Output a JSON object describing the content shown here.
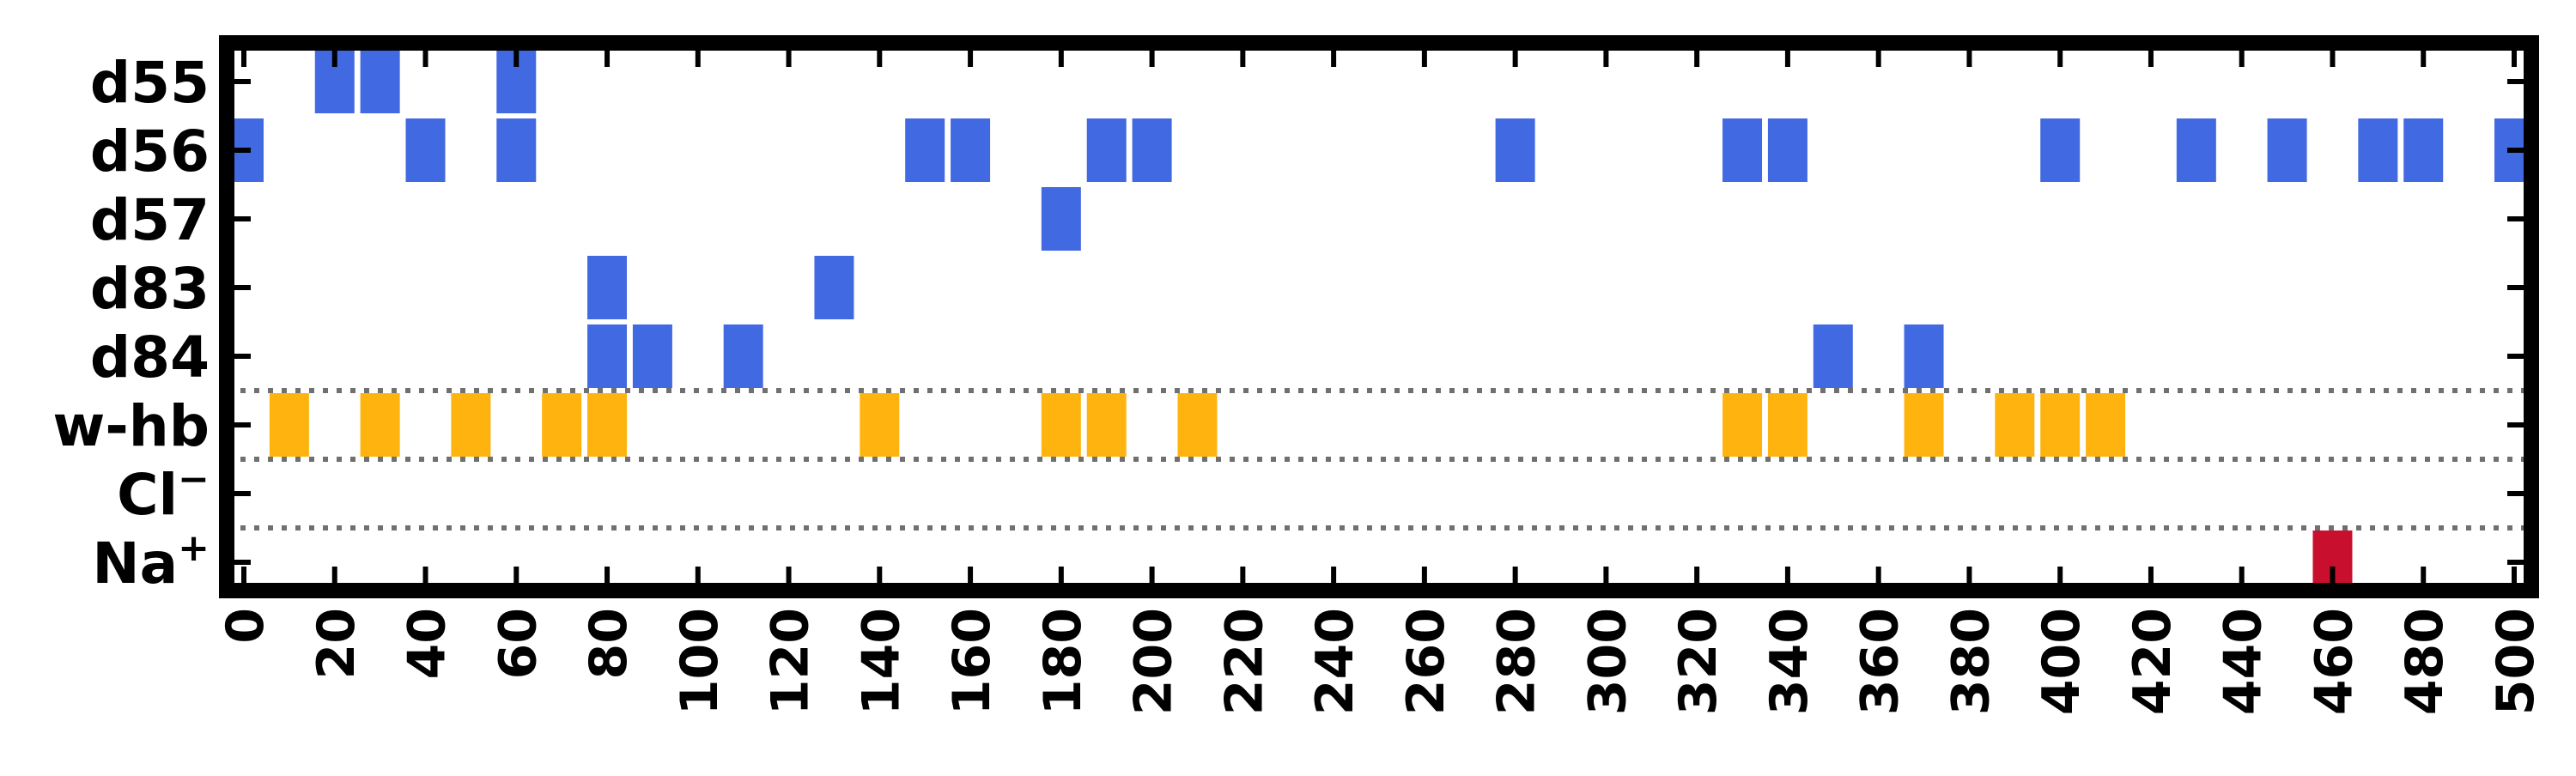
{
  "chart_data": {
    "type": "scatter",
    "title": "",
    "xlabel": "",
    "ylabel": "",
    "xlim": [
      0,
      500
    ],
    "x_ticks": [
      0,
      20,
      40,
      60,
      80,
      100,
      120,
      140,
      160,
      180,
      200,
      220,
      240,
      260,
      280,
      300,
      320,
      340,
      360,
      380,
      400,
      420,
      440,
      460,
      480,
      500
    ],
    "categories": [
      {
        "label": "d55",
        "sup": ""
      },
      {
        "label": "d56",
        "sup": ""
      },
      {
        "label": "d57",
        "sup": ""
      },
      {
        "label": "d83",
        "sup": ""
      },
      {
        "label": "d84",
        "sup": ""
      },
      {
        "label": "w-hb",
        "sup": ""
      },
      {
        "label": "Cl",
        "sup": "−"
      },
      {
        "label": "Na",
        "sup": "+"
      }
    ],
    "separator_lines": true,
    "grid": false,
    "colors": {
      "d-sites": "#4169E1",
      "w-hb": "#FFB30F",
      "Na+": "#C8102E"
    },
    "series": [
      {
        "category": "d55",
        "color": "#4169E1",
        "x": [
          20,
          30,
          60
        ]
      },
      {
        "category": "d56",
        "color": "#4169E1",
        "x": [
          0,
          40,
          60,
          150,
          160,
          190,
          200,
          280,
          330,
          340,
          400,
          430,
          450,
          470,
          480,
          500
        ]
      },
      {
        "category": "d57",
        "color": "#4169E1",
        "x": [
          180
        ]
      },
      {
        "category": "d83",
        "color": "#4169E1",
        "x": [
          80,
          130
        ]
      },
      {
        "category": "d84",
        "color": "#4169E1",
        "x": [
          80,
          90,
          110,
          350,
          370
        ]
      },
      {
        "category": "w-hb",
        "color": "#FFB30F",
        "x": [
          10,
          30,
          50,
          70,
          80,
          140,
          180,
          190,
          210,
          330,
          340,
          370,
          390,
          400,
          410
        ]
      },
      {
        "category": "Cl",
        "color": "#4169E1",
        "x": []
      },
      {
        "category": "Na",
        "color": "#C8102E",
        "x": [
          460
        ]
      }
    ]
  }
}
